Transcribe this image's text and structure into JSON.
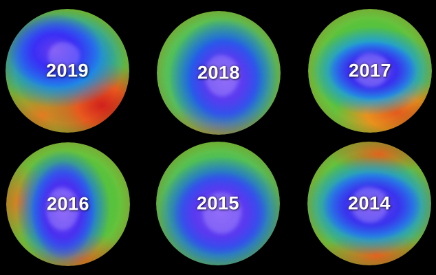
{
  "panels": [
    {
      "label": "2019"
    },
    {
      "label": "2018"
    },
    {
      "label": "2017"
    },
    {
      "label": "2016"
    },
    {
      "label": "2015"
    },
    {
      "label": "2014"
    }
  ],
  "colors": {
    "background": "#000000",
    "ozone_hole_core": "#5a3cf0",
    "ozone_low": "#1e5fe8",
    "ozone_mid": "#45c04c",
    "ozone_high": "#e25a1e",
    "label_text": "#ffffff"
  }
}
